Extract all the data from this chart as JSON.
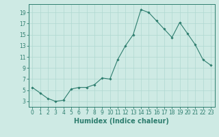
{
  "x": [
    0,
    1,
    2,
    3,
    4,
    5,
    6,
    7,
    8,
    9,
    10,
    11,
    12,
    13,
    14,
    15,
    16,
    17,
    18,
    19,
    20,
    21,
    22,
    23
  ],
  "y": [
    5.5,
    4.5,
    3.5,
    3.0,
    3.2,
    5.2,
    5.5,
    5.5,
    6.0,
    7.2,
    7.0,
    10.5,
    13.0,
    15.0,
    19.5,
    19.0,
    17.5,
    16.0,
    14.5,
    17.2,
    15.2,
    13.2,
    10.5,
    9.5
  ],
  "xlabel": "Humidex (Indice chaleur)",
  "yticks": [
    3,
    5,
    7,
    9,
    11,
    13,
    15,
    17,
    19
  ],
  "xticks": [
    0,
    1,
    2,
    3,
    4,
    5,
    6,
    7,
    8,
    9,
    10,
    11,
    12,
    13,
    14,
    15,
    16,
    17,
    18,
    19,
    20,
    21,
    22,
    23
  ],
  "ylim": [
    2.0,
    20.5
  ],
  "xlim": [
    -0.5,
    23.5
  ],
  "line_color": "#2d7d6e",
  "marker": "D",
  "marker_size": 1.8,
  "bg_color": "#ceeae4",
  "grid_color": "#afd8d0",
  "tick_fontsize": 5.5,
  "xlabel_fontsize": 7.0
}
